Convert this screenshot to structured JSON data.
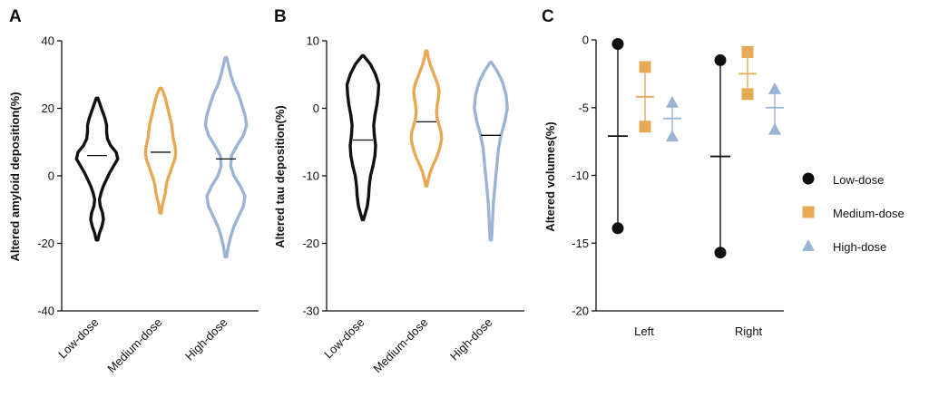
{
  "colors": {
    "low": "#111111",
    "medium": "#E8A957",
    "high": "#9BB3D4"
  },
  "chart_data": [
    {
      "panel": "A",
      "type": "violin",
      "ylabel": "Altered amyloid deposition(%)",
      "ylim": [
        -40,
        40
      ],
      "yticks": [
        -40,
        -20,
        0,
        20,
        40
      ],
      "categories": [
        "Low-dose",
        "Medium-dose",
        "High-dose"
      ],
      "series": [
        {
          "name": "Low-dose",
          "color_key": "low",
          "min": -19,
          "max": 23,
          "median": 6,
          "profile": [
            [
              -19,
              0.5
            ],
            [
              -17,
              1.5
            ],
            [
              -15,
              3
            ],
            [
              -13,
              4
            ],
            [
              -11,
              3.5
            ],
            [
              -9,
              2
            ],
            [
              -7,
              1.5
            ],
            [
              -5,
              2.5
            ],
            [
              -3,
              4
            ],
            [
              -1,
              6
            ],
            [
              1,
              8
            ],
            [
              3,
              10.5
            ],
            [
              5,
              13
            ],
            [
              7,
              12
            ],
            [
              9,
              8.5
            ],
            [
              11,
              6.5
            ],
            [
              13,
              6
            ],
            [
              15,
              6
            ],
            [
              17,
              5
            ],
            [
              19,
              3.5
            ],
            [
              21,
              2
            ],
            [
              23,
              0.5
            ]
          ]
        },
        {
          "name": "Medium-dose",
          "color_key": "medium",
          "min": -11,
          "max": 26,
          "median": 7,
          "profile": [
            [
              -11,
              0.5
            ],
            [
              -9,
              1
            ],
            [
              -7,
              2
            ],
            [
              -5,
              3
            ],
            [
              -3,
              3.5
            ],
            [
              -1,
              4.5
            ],
            [
              1,
              6
            ],
            [
              3,
              7.5
            ],
            [
              5,
              9
            ],
            [
              7,
              9.5
            ],
            [
              9,
              9
            ],
            [
              11,
              8
            ],
            [
              13,
              7.5
            ],
            [
              15,
              7
            ],
            [
              17,
              6
            ],
            [
              19,
              5
            ],
            [
              21,
              4
            ],
            [
              23,
              3
            ],
            [
              25,
              1.5
            ],
            [
              26,
              0.5
            ]
          ]
        },
        {
          "name": "High-dose",
          "color_key": "high",
          "min": -24,
          "max": 35,
          "median": 5,
          "profile": [
            [
              -24,
              0.5
            ],
            [
              -21,
              1.5
            ],
            [
              -18,
              3
            ],
            [
              -15,
              5
            ],
            [
              -12,
              8
            ],
            [
              -9,
              11
            ],
            [
              -6,
              12
            ],
            [
              -3,
              9
            ],
            [
              0,
              5
            ],
            [
              3,
              3
            ],
            [
              6,
              3.5
            ],
            [
              9,
              7
            ],
            [
              12,
              11
            ],
            [
              15,
              13
            ],
            [
              18,
              12
            ],
            [
              21,
              10
            ],
            [
              24,
              8
            ],
            [
              27,
              5
            ],
            [
              30,
              3
            ],
            [
              33,
              1.5
            ],
            [
              35,
              0.5
            ]
          ]
        }
      ]
    },
    {
      "panel": "B",
      "type": "violin",
      "ylabel": "Altered tau deposition(%)",
      "ylim": [
        -30,
        10
      ],
      "yticks": [
        -30,
        -20,
        -10,
        0,
        10
      ],
      "categories": [
        "Low-dose",
        "Medium-dose",
        "High-dose"
      ],
      "series": [
        {
          "name": "Low-dose",
          "color_key": "low",
          "min": -16.5,
          "max": 7.8,
          "median": -4.7,
          "profile": [
            [
              -16.5,
              0.5
            ],
            [
              -15.5,
              2
            ],
            [
              -14.5,
              3.5
            ],
            [
              -13,
              4.5
            ],
            [
              -11.5,
              5
            ],
            [
              -10,
              6
            ],
            [
              -8.5,
              8
            ],
            [
              -7,
              9.5
            ],
            [
              -5.5,
              10
            ],
            [
              -4,
              9
            ],
            [
              -2.5,
              8.5
            ],
            [
              -1,
              9.5
            ],
            [
              0.5,
              11
            ],
            [
              2,
              12
            ],
            [
              3.5,
              12.5
            ],
            [
              5,
              10
            ],
            [
              6.5,
              6
            ],
            [
              7.8,
              0.5
            ]
          ]
        },
        {
          "name": "Medium-dose",
          "color_key": "medium",
          "min": -11.5,
          "max": 8.5,
          "median": -2,
          "profile": [
            [
              -11.5,
              0.5
            ],
            [
              -10.5,
              1.5
            ],
            [
              -9.5,
              3
            ],
            [
              -8.5,
              5
            ],
            [
              -7.5,
              7.5
            ],
            [
              -6.5,
              9.5
            ],
            [
              -5.5,
              11
            ],
            [
              -4.5,
              12
            ],
            [
              -3.5,
              11.5
            ],
            [
              -2.5,
              10
            ],
            [
              -1.5,
              8.5
            ],
            [
              -0.5,
              8
            ],
            [
              0.5,
              8.5
            ],
            [
              1.5,
              9.5
            ],
            [
              2.5,
              10
            ],
            [
              3.5,
              9
            ],
            [
              4.5,
              7
            ],
            [
              5.5,
              5
            ],
            [
              6.5,
              3
            ],
            [
              7.5,
              1.5
            ],
            [
              8.5,
              0.5
            ]
          ]
        },
        {
          "name": "High-dose",
          "color_key": "high",
          "min": -19.5,
          "max": 6.8,
          "median": -4,
          "profile": [
            [
              -19.5,
              0.5
            ],
            [
              -18,
              1
            ],
            [
              -16,
              1.5
            ],
            [
              -14,
              2
            ],
            [
              -12,
              3
            ],
            [
              -10,
              4
            ],
            [
              -8,
              5
            ],
            [
              -6,
              6
            ],
            [
              -4,
              8
            ],
            [
              -2,
              11
            ],
            [
              0,
              13
            ],
            [
              2,
              12
            ],
            [
              4,
              9
            ],
            [
              5.5,
              5
            ],
            [
              6.8,
              0.5
            ]
          ]
        }
      ]
    },
    {
      "panel": "C",
      "type": "scatter",
      "ylabel": "Altered volumes(%)",
      "ylim": [
        -20,
        0
      ],
      "yticks": [
        -20,
        -15,
        -10,
        -5,
        0
      ],
      "categories": [
        "Left",
        "Right"
      ],
      "series": [
        {
          "name": "Low-dose",
          "color_key": "low",
          "marker": "circle",
          "groups": [
            {
              "points": [
                -0.3,
                -13.9
              ],
              "mean": -7.1
            },
            {
              "points": [
                -1.5,
                -15.7
              ],
              "mean": -8.6
            }
          ]
        },
        {
          "name": "Medium-dose",
          "color_key": "medium",
          "marker": "square",
          "groups": [
            {
              "points": [
                -2.0,
                -6.4
              ],
              "mean": -4.2
            },
            {
              "points": [
                -0.9,
                -4.0
              ],
              "mean": -2.5
            }
          ]
        },
        {
          "name": "High-dose",
          "color_key": "high",
          "marker": "triangle",
          "groups": [
            {
              "points": [
                -4.6,
                -7.1
              ],
              "mean": -5.8
            },
            {
              "points": [
                -3.6,
                -6.6
              ],
              "mean": -5.0
            }
          ]
        }
      ],
      "legend": [
        "Low-dose",
        "Medium-dose",
        "High-dose"
      ]
    }
  ]
}
